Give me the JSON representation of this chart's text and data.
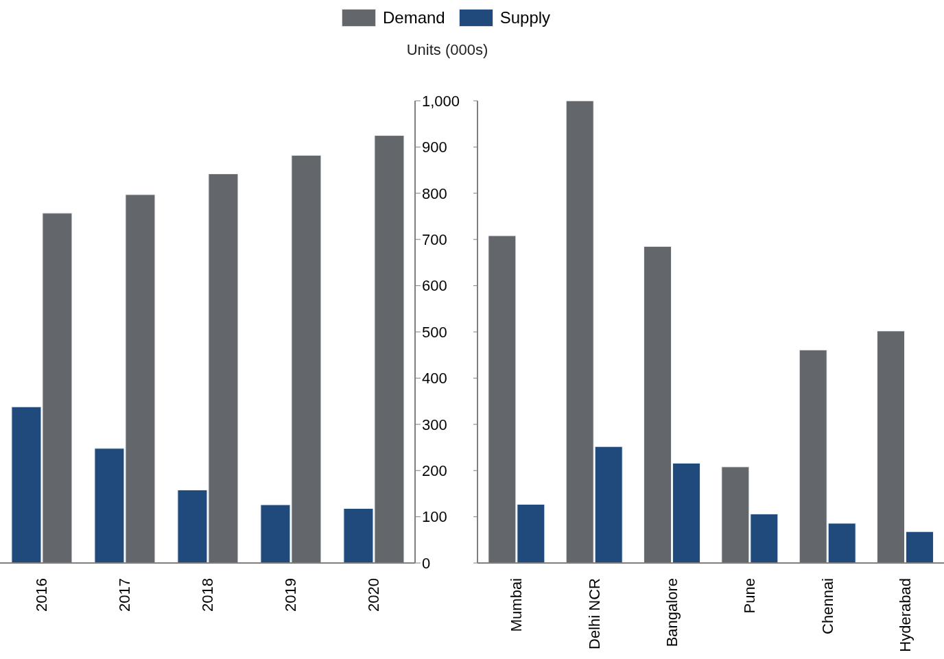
{
  "chart_data": [
    {
      "type": "bar",
      "ylabel": "Units (000s)",
      "categories": [
        "2016",
        "2017",
        "2018",
        "2019",
        "2020"
      ],
      "series": [
        {
          "color": "#214a7c",
          "values": [
            338,
            248,
            158,
            126,
            118
          ]
        },
        {
          "color": "#63666a",
          "values": [
            757,
            797,
            842,
            882,
            925
          ]
        }
      ],
      "ylim": [
        0,
        1000
      ],
      "yticks": [
        0,
        100,
        200,
        300,
        400,
        500,
        600,
        700,
        800,
        900,
        {
          "value": 1000,
          "label": "1,000"
        }
      ]
    },
    {
      "type": "bar",
      "categories": [
        "Mumbai",
        "Delhi NCR",
        "Bangalore",
        "Pune",
        "Chennai",
        "Hyderabad"
      ],
      "series": [
        {
          "name": "Demand",
          "color": "#63666a",
          "values": [
            708,
            1000,
            685,
            208,
            461,
            502
          ]
        },
        {
          "name": "Supply",
          "color": "#214a7c",
          "values": [
            127,
            252,
            216,
            106,
            86,
            68
          ]
        }
      ],
      "ylim": [
        0,
        1000
      ],
      "yticks": [
        0,
        100,
        200,
        300,
        400,
        500,
        600,
        700,
        800,
        900,
        1000
      ],
      "tick_labels": "x",
      "legend": "top"
    }
  ]
}
